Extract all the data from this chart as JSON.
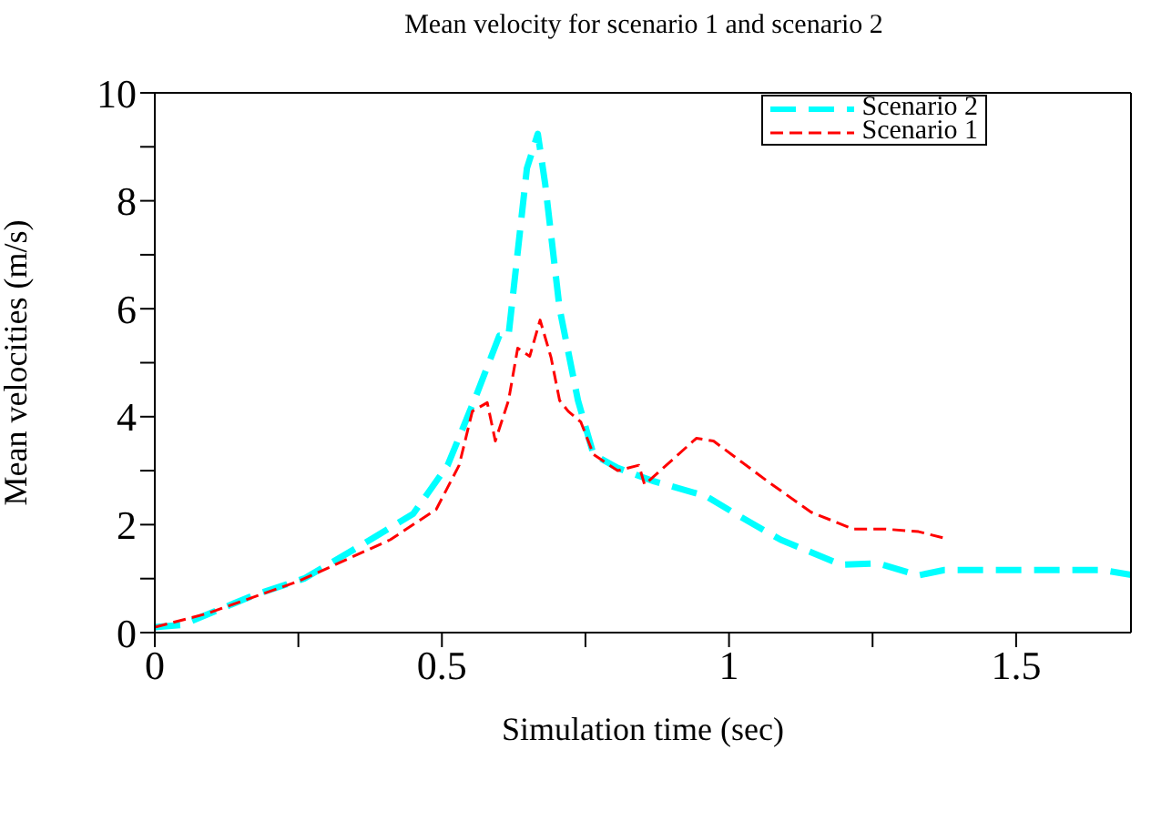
{
  "chart_data": {
    "type": "line",
    "title": "Mean velocity for scenario 1 and scenario 2",
    "xlabel": "Simulation time (sec)",
    "ylabel": "Mean velocities (m/s)",
    "xlim": [
      0,
      1.7
    ],
    "ylim": [
      0,
      10
    ],
    "xticks": [
      0,
      {
        "value": 0.25,
        "label": null
      },
      0.5,
      {
        "value": 0.75,
        "label": null
      },
      1,
      {
        "value": 1.25,
        "label": null
      },
      1.5
    ],
    "yticks": [
      0,
      {
        "value": 1,
        "label": null
      },
      2,
      {
        "value": 3,
        "label": null
      },
      4,
      {
        "value": 5,
        "label": null
      },
      6,
      {
        "value": 7,
        "label": null
      },
      8,
      {
        "value": 9,
        "label": null
      },
      10
    ],
    "grid": false,
    "legend": "top right",
    "marker": "none",
    "series": [
      {
        "name": "Scenario 2",
        "color": "#00ffff",
        "line_style": "dashed",
        "x": [
          0,
          0.047,
          0.174,
          0.26,
          0.35,
          0.45,
          0.51,
          0.56,
          0.6,
          0.616,
          0.632,
          0.648,
          0.667,
          0.68,
          0.705,
          0.737,
          0.764,
          0.806,
          0.87,
          0.96,
          1.016,
          1.09,
          1.195,
          1.26,
          1.33,
          1.375,
          1.65,
          1.7
        ],
        "values": [
          0.1,
          0.14,
          0.7,
          1.0,
          1.56,
          2.2,
          3.1,
          4.4,
          5.5,
          5.5,
          7.05,
          8.6,
          9.24,
          8.3,
          6.0,
          4.3,
          3.3,
          3.05,
          2.8,
          2.53,
          2.17,
          1.72,
          1.26,
          1.28,
          1.06,
          1.16,
          1.16,
          1.07
        ]
      },
      {
        "name": "Scenario 1",
        "color": "#ff0000",
        "line_style": "dashed",
        "x": [
          0,
          0.09,
          0.25,
          0.41,
          0.49,
          0.53,
          0.553,
          0.579,
          0.593,
          0.616,
          0.632,
          0.653,
          0.671,
          0.69,
          0.705,
          0.72,
          0.742,
          0.764,
          0.806,
          0.843,
          0.853,
          0.874,
          0.943,
          0.973,
          1.07,
          1.143,
          1.216,
          1.27,
          1.33,
          1.375
        ],
        "values": [
          0.1,
          0.35,
          0.95,
          1.72,
          2.28,
          3.1,
          4.1,
          4.26,
          3.55,
          4.3,
          5.27,
          5.12,
          5.79,
          5.1,
          4.3,
          4.1,
          3.9,
          3.3,
          3.0,
          3.1,
          2.74,
          2.94,
          3.6,
          3.55,
          2.78,
          2.23,
          1.92,
          1.92,
          1.87,
          1.75
        ]
      }
    ]
  }
}
